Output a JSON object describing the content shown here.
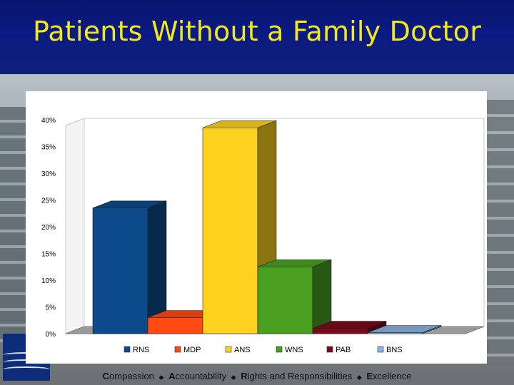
{
  "title": "Patients Without a Family Doctor",
  "footer": {
    "items": [
      {
        "initial": "C",
        "rest": "ompassion"
      },
      {
        "initial": "A",
        "rest": "ccountability"
      },
      {
        "initial": "R",
        "rest": "ights and Responsibilities"
      },
      {
        "initial": "E",
        "rest": "xcellence"
      }
    ],
    "separator": "◆"
  },
  "colors": {
    "title_text": "#f3e81e",
    "title_band": "#0a1a82"
  },
  "chart_data": {
    "type": "bar",
    "categories": [
      "RNS",
      "MDP",
      "ANS",
      "WNS",
      "PAB",
      "BNS"
    ],
    "values": [
      23.5,
      3,
      38.5,
      12.5,
      1,
      0.2
    ],
    "colors": [
      "#0d4a8a",
      "#ff4a12",
      "#ffd21f",
      "#4aa020",
      "#7a0a1a",
      "#8ab4e0"
    ],
    "ylim": [
      0,
      40
    ],
    "yticks": [
      "0%",
      "5%",
      "10%",
      "15%",
      "20%",
      "25%",
      "30%",
      "35%",
      "40%"
    ],
    "grid": false,
    "legend": "bottom",
    "legend_labels": [
      "RNS",
      "MDP",
      "ANS",
      "WNS",
      "PAB",
      "BNS"
    ]
  }
}
